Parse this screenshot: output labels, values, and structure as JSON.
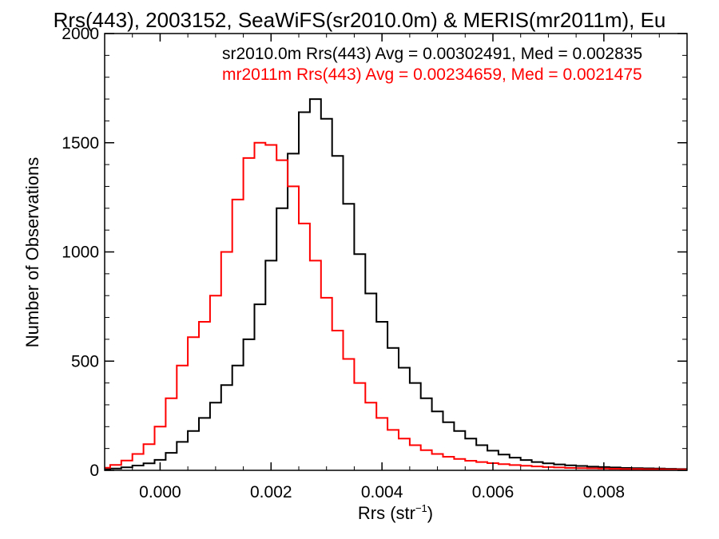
{
  "chart_data": {
    "type": "line",
    "title": "Rrs(443), 2003152, SeaWiFS(sr2010.0m) & MERIS(mr2011m), Eu",
    "xlabel": "Rrs (str",
    "xlabel_sup": "−1",
    "xlabel_close": ")",
    "ylabel": "Number of Observations",
    "xlim": [
      -0.001,
      0.0095
    ],
    "ylim": [
      0,
      2000
    ],
    "x_ticks": [
      "0.000",
      "0.002",
      "0.004",
      "0.006",
      "0.008"
    ],
    "x_tick_values": [
      0.0,
      0.002,
      0.004,
      0.006,
      0.008
    ],
    "y_ticks": [
      "0",
      "500",
      "1000",
      "1500",
      "2000"
    ],
    "y_tick_values": [
      0,
      500,
      1000,
      1500,
      2000
    ],
    "grid": false,
    "legend_position": "top-right",
    "series": [
      {
        "name": "sr2010.0m Rrs(443) Avg = 0.00302491, Med = 0.002835",
        "color": "#000000",
        "points": [
          [
            -0.001,
            5
          ],
          [
            -0.0008,
            8
          ],
          [
            -0.0006,
            14
          ],
          [
            -0.0004,
            22
          ],
          [
            -0.0002,
            32
          ],
          [
            0.0,
            48
          ],
          [
            0.0002,
            80
          ],
          [
            0.0004,
            130
          ],
          [
            0.0006,
            180
          ],
          [
            0.0008,
            240
          ],
          [
            0.001,
            310
          ],
          [
            0.0012,
            390
          ],
          [
            0.0014,
            480
          ],
          [
            0.0016,
            600
          ],
          [
            0.0018,
            760
          ],
          [
            0.002,
            960
          ],
          [
            0.0022,
            1200
          ],
          [
            0.0024,
            1450
          ],
          [
            0.0026,
            1640
          ],
          [
            0.0028,
            1700
          ],
          [
            0.003,
            1610
          ],
          [
            0.0032,
            1440
          ],
          [
            0.0034,
            1220
          ],
          [
            0.0036,
            990
          ],
          [
            0.0038,
            810
          ],
          [
            0.004,
            680
          ],
          [
            0.0042,
            560
          ],
          [
            0.0044,
            470
          ],
          [
            0.0046,
            400
          ],
          [
            0.0048,
            330
          ],
          [
            0.005,
            270
          ],
          [
            0.0052,
            220
          ],
          [
            0.0054,
            180
          ],
          [
            0.0056,
            145
          ],
          [
            0.0058,
            115
          ],
          [
            0.006,
            90
          ],
          [
            0.0062,
            72
          ],
          [
            0.0064,
            58
          ],
          [
            0.0066,
            47
          ],
          [
            0.0068,
            38
          ],
          [
            0.007,
            32
          ],
          [
            0.0072,
            27
          ],
          [
            0.0074,
            23
          ],
          [
            0.0076,
            20
          ],
          [
            0.0078,
            17
          ],
          [
            0.008,
            15
          ],
          [
            0.0082,
            13
          ],
          [
            0.0084,
            11
          ],
          [
            0.0086,
            10
          ],
          [
            0.0088,
            9
          ],
          [
            0.009,
            8
          ],
          [
            0.0092,
            7
          ],
          [
            0.0094,
            6
          ]
        ]
      },
      {
        "name": "mr2011m Rrs(443) Avg = 0.00234659, Med = 0.0021475",
        "color": "#ff0000",
        "points": [
          [
            -0.001,
            12
          ],
          [
            -0.0008,
            25
          ],
          [
            -0.0006,
            45
          ],
          [
            -0.0004,
            75
          ],
          [
            -0.0002,
            120
          ],
          [
            0.0,
            200
          ],
          [
            0.0002,
            330
          ],
          [
            0.0004,
            480
          ],
          [
            0.0006,
            610
          ],
          [
            0.0008,
            680
          ],
          [
            0.001,
            800
          ],
          [
            0.0012,
            1000
          ],
          [
            0.0014,
            1240
          ],
          [
            0.0016,
            1430
          ],
          [
            0.0018,
            1500
          ],
          [
            0.002,
            1490
          ],
          [
            0.0022,
            1420
          ],
          [
            0.0024,
            1300
          ],
          [
            0.0026,
            1130
          ],
          [
            0.0028,
            960
          ],
          [
            0.003,
            790
          ],
          [
            0.0032,
            640
          ],
          [
            0.0034,
            510
          ],
          [
            0.0036,
            400
          ],
          [
            0.0038,
            310
          ],
          [
            0.004,
            240
          ],
          [
            0.0042,
            185
          ],
          [
            0.0044,
            145
          ],
          [
            0.0046,
            115
          ],
          [
            0.0048,
            92
          ],
          [
            0.005,
            75
          ],
          [
            0.0052,
            62
          ],
          [
            0.0054,
            52
          ],
          [
            0.0056,
            44
          ],
          [
            0.0058,
            38
          ],
          [
            0.006,
            33
          ],
          [
            0.0062,
            28
          ],
          [
            0.0064,
            24
          ],
          [
            0.0066,
            21
          ],
          [
            0.0068,
            18
          ],
          [
            0.007,
            15
          ],
          [
            0.0072,
            13
          ],
          [
            0.0074,
            11
          ],
          [
            0.0076,
            10
          ],
          [
            0.0078,
            9
          ],
          [
            0.008,
            8
          ],
          [
            0.0082,
            7
          ],
          [
            0.0084,
            6
          ],
          [
            0.0086,
            6
          ],
          [
            0.0088,
            5
          ],
          [
            0.009,
            5
          ],
          [
            0.0092,
            4
          ],
          [
            0.0094,
            4
          ]
        ]
      }
    ]
  }
}
